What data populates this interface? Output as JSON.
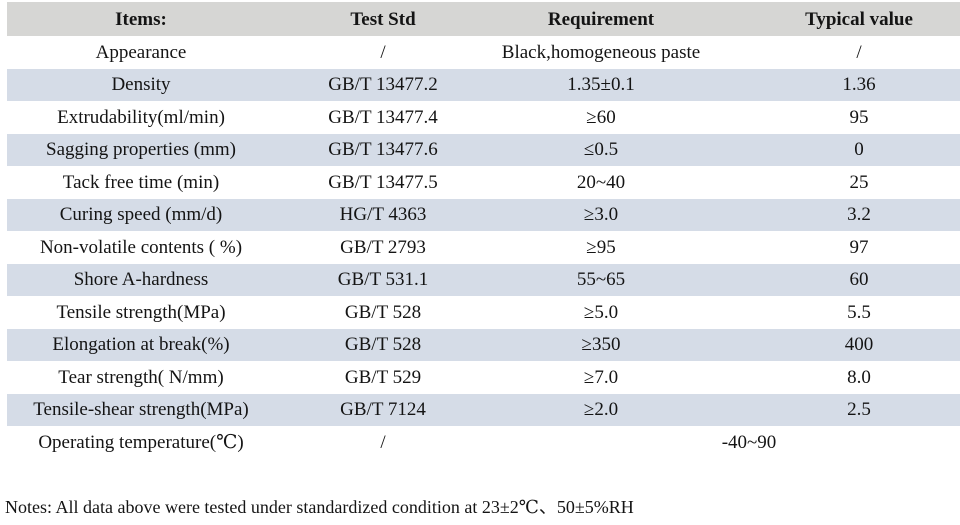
{
  "table": {
    "headers": [
      "Items:",
      "Test Std",
      "Requirement",
      "Typical value"
    ],
    "rows": [
      {
        "item": "Appearance",
        "std": "/",
        "req": "Black,homogeneous paste",
        "typical": "/"
      },
      {
        "item": "Density",
        "std": "GB/T 13477.2",
        "req": "1.35±0.1",
        "typical": "1.36"
      },
      {
        "item": "Extrudability(ml/min)",
        "std": "GB/T 13477.4",
        "req": "≥60",
        "typical": "95"
      },
      {
        "item": "Sagging properties (mm)",
        "std": "GB/T 13477.6",
        "req": "≤0.5",
        "typical": "0"
      },
      {
        "item": "Tack free time (min)",
        "std": "GB/T 13477.5",
        "req": "20~40",
        "typical": "25"
      },
      {
        "item": "Curing speed (mm/d)",
        "std": "HG/T 4363",
        "req": "≥3.0",
        "typical": "3.2"
      },
      {
        "item": "Non-volatile contents ( %)",
        "std": "GB/T 2793",
        "req": "≥95",
        "typical": "97"
      },
      {
        "item": "Shore A-hardness",
        "std": "GB/T 531.1",
        "req": "55~65",
        "typical": "60"
      },
      {
        "item": "Tensile strength(MPa)",
        "std": "GB/T 528",
        "req": "≥5.0",
        "typical": "5.5"
      },
      {
        "item": "Elongation at break(%)",
        "std": "GB/T 528",
        "req": "≥350",
        "typical": "400"
      },
      {
        "item": "Tear strength( N/mm)",
        "std": "GB/T 529",
        "req": "≥7.0",
        "typical": "8.0"
      },
      {
        "item": "Tensile-shear strength(MPa)",
        "std": "GB/T 7124",
        "req": "≥2.0",
        "typical": "2.5"
      },
      {
        "item": "Operating temperature(℃)",
        "std": "/",
        "req": "-40~90",
        "typical": "",
        "req_spans_typical": true
      }
    ]
  },
  "notes": "Notes: All data above were tested under standardized condition at 23±2℃、50±5%RH",
  "colors": {
    "header_bg": "#d6d6d4",
    "alt_row_bg": "#d5dce7",
    "row_bg": "#ffffff",
    "text": "#141414"
  }
}
